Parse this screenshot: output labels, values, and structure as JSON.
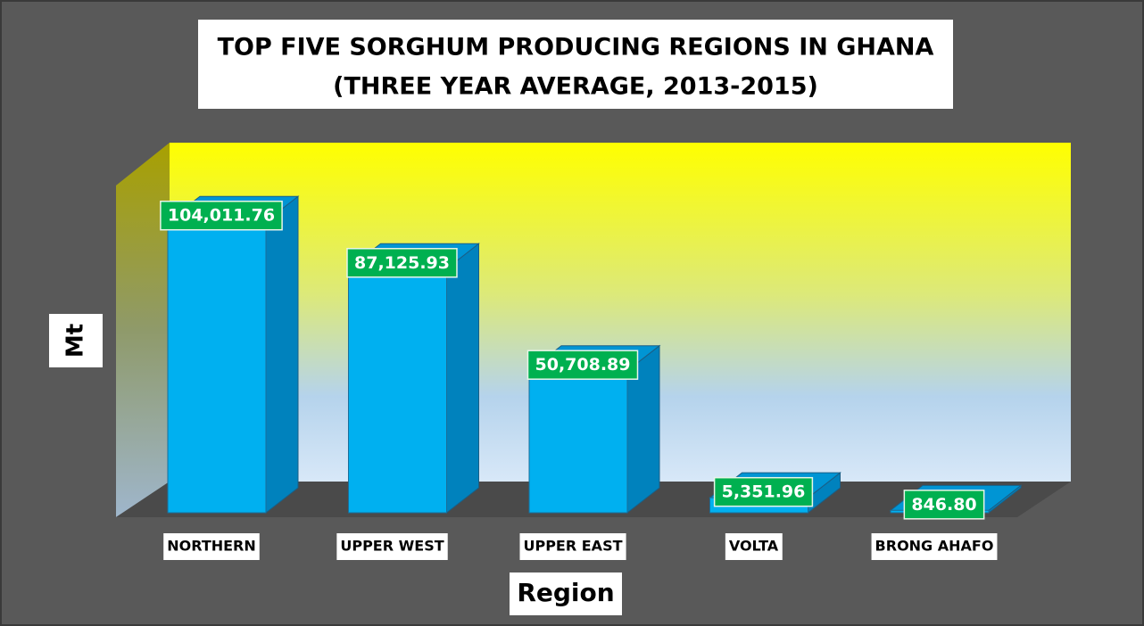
{
  "chart_data": {
    "type": "bar3d",
    "title": "TOP FIVE SORGHUM PRODUCING REGIONS IN GHANA",
    "subtitle": "(THREE YEAR AVERAGE, 2013-2015)",
    "x_label": "Region",
    "y_label": "Mt",
    "categories": [
      "NORTHERN",
      "UPPER WEST",
      "UPPER EAST",
      "VOLTA",
      "BRONG AHAFO"
    ],
    "values": [
      104011.76,
      87125.93,
      50708.89,
      5351.96,
      846.8
    ],
    "value_labels": [
      "104,011.76",
      "87,125.93",
      "50,708.89",
      "5,351.96",
      "846.80"
    ],
    "color": "#00b0f0",
    "label_color": "#00b050",
    "ylim": [
      0,
      120000
    ]
  }
}
